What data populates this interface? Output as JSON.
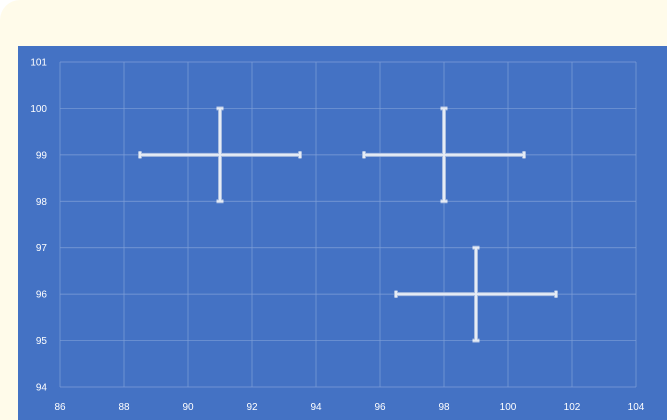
{
  "chart_data": {
    "type": "scatter",
    "title": "",
    "xlabel": "",
    "ylabel": "",
    "xlim": [
      86,
      104
    ],
    "ylim": [
      94,
      101
    ],
    "xticks": [
      86,
      88,
      90,
      92,
      94,
      96,
      98,
      100,
      102,
      104
    ],
    "yticks": [
      94,
      95,
      96,
      97,
      98,
      99,
      100,
      101
    ],
    "grid": true,
    "legend": "none",
    "points": [
      {
        "x": 91,
        "y": 99,
        "x_err": 2.5,
        "y_err": 1
      },
      {
        "x": 98,
        "y": 99,
        "x_err": 2.5,
        "y_err": 1
      },
      {
        "x": 99,
        "y": 96,
        "x_err": 2.5,
        "y_err": 1
      }
    ],
    "colors": {
      "frame_bg": "#fffbea",
      "plot_bg": "#4472c4",
      "grid": "#7f9fd8",
      "error_bar": "#e6ecf5",
      "error_bar_edge": "#a9bde0",
      "text": "#ffffff"
    }
  }
}
